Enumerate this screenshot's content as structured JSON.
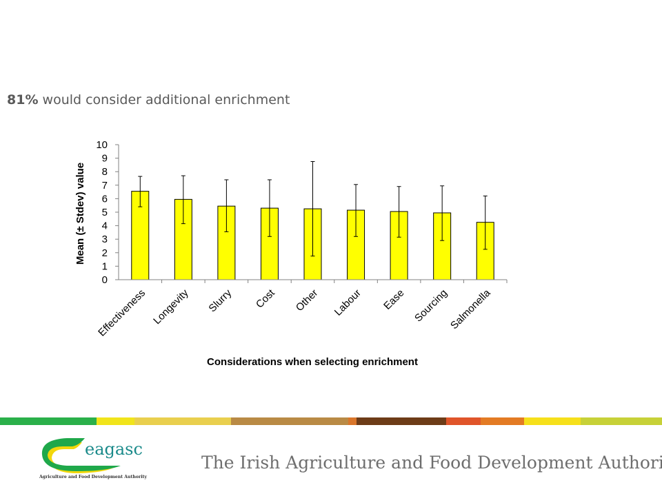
{
  "headline": {
    "percent": "81%",
    "text": " would consider additional enrichment"
  },
  "chart_data": {
    "type": "bar",
    "categories": [
      "Effectiveness",
      "Longevity",
      "Slurry",
      "Cost",
      "Other",
      "Labour",
      "Ease",
      "Sourcing",
      "Salmonella"
    ],
    "values": [
      6.55,
      5.95,
      5.45,
      5.3,
      5.25,
      5.15,
      5.05,
      4.95,
      4.25
    ],
    "error_low": [
      5.4,
      4.15,
      3.55,
      3.2,
      1.75,
      3.2,
      3.15,
      2.9,
      2.25
    ],
    "error_high": [
      7.65,
      7.7,
      7.4,
      7.4,
      8.75,
      7.05,
      6.9,
      6.95,
      6.2
    ],
    "xlabel": "Considerations when selecting enrichment",
    "ylabel": "Mean (± Stdev) value",
    "ylim": [
      0,
      10
    ],
    "yticks": [
      "0",
      "1",
      "2",
      "3",
      "4",
      "5",
      "6",
      "7",
      "8",
      "9",
      "10"
    ],
    "bar_color": "#ffff00",
    "grid": false
  },
  "footer": {
    "logo_text": "eagasc",
    "logo_subtitle": "Agriculture and Food Development Authority",
    "tagline": "The Irish Agriculture and Food Development Authority",
    "stripe_colors": [
      "#2bb04a",
      "#f1e41b",
      "#e9cf4e",
      "#b98a45",
      "#d9762b",
      "#6d3c18",
      "#e0552a",
      "#e37b24",
      "#f6e01b",
      "#c7d138"
    ],
    "logo_colors": {
      "green": "#1fa84a",
      "yellow": "#f2d70b",
      "teal": "#1a8a8a"
    }
  }
}
